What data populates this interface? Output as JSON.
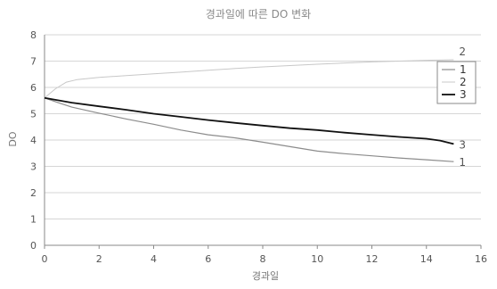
{
  "chart_data": {
    "type": "line",
    "title": "경과일에 따른 DO 변화",
    "xlabel": "경과일",
    "ylabel": "DO",
    "xlim": [
      0,
      16
    ],
    "ylim": [
      0,
      8
    ],
    "xticks": [
      0,
      2,
      4,
      6,
      8,
      10,
      12,
      14,
      16
    ],
    "yticks": [
      0,
      1,
      2,
      3,
      4,
      5,
      6,
      7,
      8
    ],
    "grid": "horizontal",
    "legend_position": "right",
    "series": [
      {
        "name": "1",
        "color": "#8c8c8c",
        "end_label": "1",
        "x": [
          0,
          0.5,
          1,
          2,
          3,
          4,
          5,
          6,
          7,
          8,
          9,
          10,
          11,
          12,
          13,
          14,
          15
        ],
        "y": [
          5.6,
          5.42,
          5.25,
          5.02,
          4.8,
          4.6,
          4.38,
          4.2,
          4.08,
          3.92,
          3.75,
          3.58,
          3.48,
          3.4,
          3.32,
          3.25,
          3.18
        ]
      },
      {
        "name": "2",
        "color": "#c8c8c8",
        "end_label": "2",
        "x": [
          0,
          0.4,
          0.8,
          1.2,
          2,
          3,
          4,
          5,
          6,
          7,
          8,
          9,
          10,
          11,
          12,
          13,
          14,
          15
        ],
        "y": [
          5.6,
          5.95,
          6.2,
          6.3,
          6.38,
          6.45,
          6.52,
          6.58,
          6.65,
          6.72,
          6.78,
          6.83,
          6.88,
          6.93,
          6.97,
          7.0,
          7.03,
          7.05
        ]
      },
      {
        "name": "3",
        "color": "#111111",
        "end_label": "3",
        "x": [
          0,
          1,
          2,
          3,
          4,
          5,
          6,
          7,
          8,
          9,
          10,
          11,
          12,
          13,
          14,
          14.5,
          15
        ],
        "y": [
          5.6,
          5.42,
          5.28,
          5.15,
          5.0,
          4.88,
          4.76,
          4.65,
          4.55,
          4.45,
          4.38,
          4.28,
          4.2,
          4.12,
          4.05,
          3.98,
          3.85
        ]
      }
    ]
  }
}
